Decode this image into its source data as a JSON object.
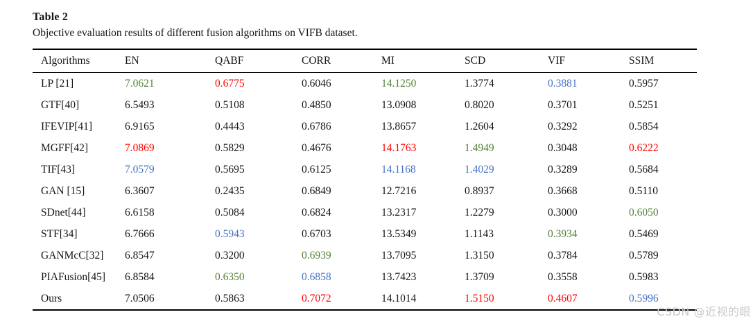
{
  "page": {
    "title": "Table 2",
    "caption": "Objective evaluation results of different fusion algorithms on VIFB dataset.",
    "watermark": "CSDN @近视的眼"
  },
  "colors": {
    "best": "#ff0000",
    "second": "#538135",
    "third": "#4472c4",
    "body_text": "#151515",
    "watermark": "#c9c9c9"
  },
  "chart_data": {
    "type": "table",
    "columns": [
      "Algorithms",
      "EN",
      "QABF",
      "CORR",
      "MI",
      "SCD",
      "VIF",
      "SSIM"
    ],
    "rows": [
      {
        "cells": [
          "LP [21]",
          "7.0621",
          "0.6775",
          "0.6046",
          "14.1250",
          "1.3774",
          "0.3881",
          "0.5957"
        ],
        "ranks": [
          "",
          "second",
          "best",
          "",
          "second",
          "",
          "third",
          ""
        ]
      },
      {
        "cells": [
          "GTF[40]",
          "6.5493",
          "0.5108",
          "0.4850",
          "13.0908",
          "0.8020",
          "0.3701",
          "0.5251"
        ],
        "ranks": [
          "",
          "",
          "",
          "",
          "",
          "",
          "",
          ""
        ]
      },
      {
        "cells": [
          "IFEVIP[41]",
          "6.9165",
          "0.4443",
          "0.6786",
          "13.8657",
          "1.2604",
          "0.3292",
          "0.5854"
        ],
        "ranks": [
          "",
          "",
          "",
          "",
          "",
          "",
          "",
          ""
        ]
      },
      {
        "cells": [
          "MGFF[42]",
          "7.0869",
          "0.5829",
          "0.4676",
          "14.1763",
          "1.4949",
          "0.3048",
          "0.6222"
        ],
        "ranks": [
          "",
          "best",
          "",
          "",
          "best",
          "second",
          "",
          "best"
        ]
      },
      {
        "cells": [
          "TIF[43]",
          "7.0579",
          "0.5695",
          "0.6125",
          "14.1168",
          "1.4029",
          "0.3289",
          "0.5684"
        ],
        "ranks": [
          "",
          "third",
          "",
          "",
          "third",
          "third",
          "",
          ""
        ]
      },
      {
        "cells": [
          "GAN [15]",
          "6.3607",
          "0.2435",
          "0.6849",
          "12.7216",
          "0.8937",
          "0.3668",
          "0.5110"
        ],
        "ranks": [
          "",
          "",
          "",
          "",
          "",
          "",
          "",
          ""
        ]
      },
      {
        "cells": [
          "SDnet[44]",
          "6.6158",
          "0.5084",
          "0.6824",
          "13.2317",
          "1.2279",
          "0.3000",
          "0.6050"
        ],
        "ranks": [
          "",
          "",
          "",
          "",
          "",
          "",
          "",
          "second"
        ]
      },
      {
        "cells": [
          "STF[34]",
          "6.7666",
          "0.5943",
          "0.6703",
          "13.5349",
          "1.1143",
          "0.3934",
          "0.5469"
        ],
        "ranks": [
          "",
          "",
          "third",
          "",
          "",
          "",
          "second",
          ""
        ]
      },
      {
        "cells": [
          "GANMcC[32]",
          "6.8547",
          "0.3200",
          "0.6939",
          "13.7095",
          "1.3150",
          "0.3784",
          "0.5789"
        ],
        "ranks": [
          "",
          "",
          "",
          "second",
          "",
          "",
          "",
          ""
        ]
      },
      {
        "cells": [
          "PIAFusion[45]",
          "6.8584",
          "0.6350",
          "0.6858",
          "13.7423",
          "1.3709",
          "0.3558",
          "0.5983"
        ],
        "ranks": [
          "",
          "",
          "second",
          "third",
          "",
          "",
          "",
          ""
        ]
      },
      {
        "cells": [
          "Ours",
          "7.0506",
          "0.5863",
          "0.7072",
          "14.1014",
          "1.5150",
          "0.4607",
          "0.5996"
        ],
        "ranks": [
          "",
          "",
          "",
          "best",
          "",
          "best",
          "best",
          "third"
        ]
      }
    ]
  }
}
